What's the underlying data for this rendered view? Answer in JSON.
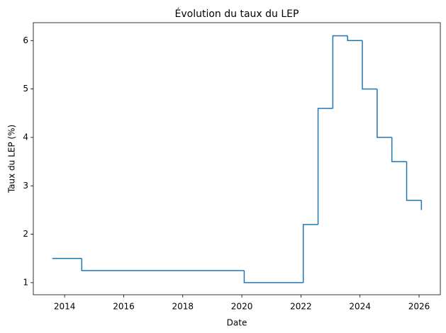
{
  "chart_data": {
    "type": "step",
    "title": "Évolution du taux du LEP",
    "x_label": "Date",
    "y_label": "Taux du LEP (%)",
    "x": [
      2013.58,
      2014.58,
      2020.08,
      2022.08,
      2022.58,
      2023.08,
      2023.58,
      2024.08,
      2024.58,
      2025.08,
      2025.58,
      2026.08
    ],
    "series": [
      {
        "name": "LEP",
        "color": "#1f77b4",
        "values": [
          1.5,
          1.25,
          1.0,
          2.2,
          4.6,
          6.1,
          6.0,
          5.0,
          4.0,
          3.5,
          2.7,
          2.5
        ]
      }
    ],
    "xlim": [
      2012.94,
      2026.72
    ],
    "xticks": [
      2014,
      2016,
      2018,
      2020,
      2022,
      2024,
      2026
    ],
    "ylim": [
      0.75,
      6.37
    ],
    "yticks": [
      1,
      2,
      3,
      4,
      5,
      6
    ]
  }
}
